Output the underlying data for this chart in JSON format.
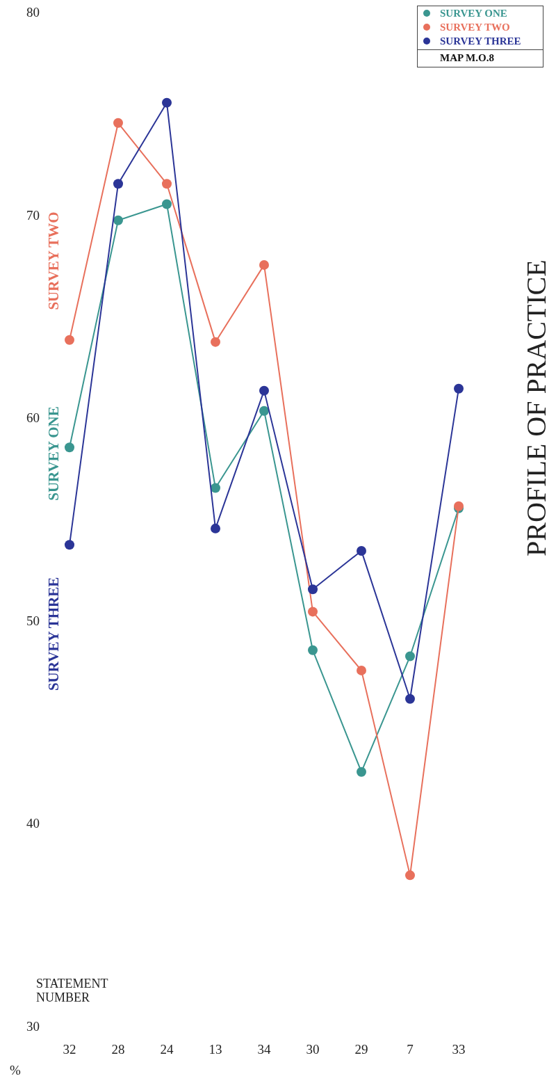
{
  "chart_data": {
    "type": "line",
    "title": "PROFILE OF PRACTICE",
    "xlabel": "STATEMENT NUMBER",
    "ylabel": "%",
    "categories": [
      "32",
      "28",
      "24",
      "13",
      "34",
      "30",
      "29",
      "7",
      "33"
    ],
    "series": [
      {
        "name": "SURVEY ONE",
        "color": "#3a9690",
        "values": [
          58.6,
          69.8,
          70.6,
          56.6,
          60.4,
          48.6,
          42.6,
          48.3,
          55.6
        ]
      },
      {
        "name": "SURVEY TWO",
        "color": "#e8705c",
        "values": [
          63.9,
          74.6,
          71.6,
          63.8,
          67.6,
          50.5,
          47.6,
          37.5,
          55.7
        ]
      },
      {
        "name": "SURVEY THREE",
        "color": "#2b3597",
        "values": [
          53.8,
          71.6,
          75.6,
          54.6,
          61.4,
          51.6,
          53.5,
          46.2,
          61.5
        ]
      }
    ],
    "ylim": [
      30,
      80
    ],
    "yticks": [
      30,
      40,
      50,
      60,
      70,
      80
    ],
    "grid": false,
    "legend": "top right",
    "marker": "circle",
    "line_style": "solid",
    "annotations": [
      "MAP M.O.8"
    ]
  }
}
